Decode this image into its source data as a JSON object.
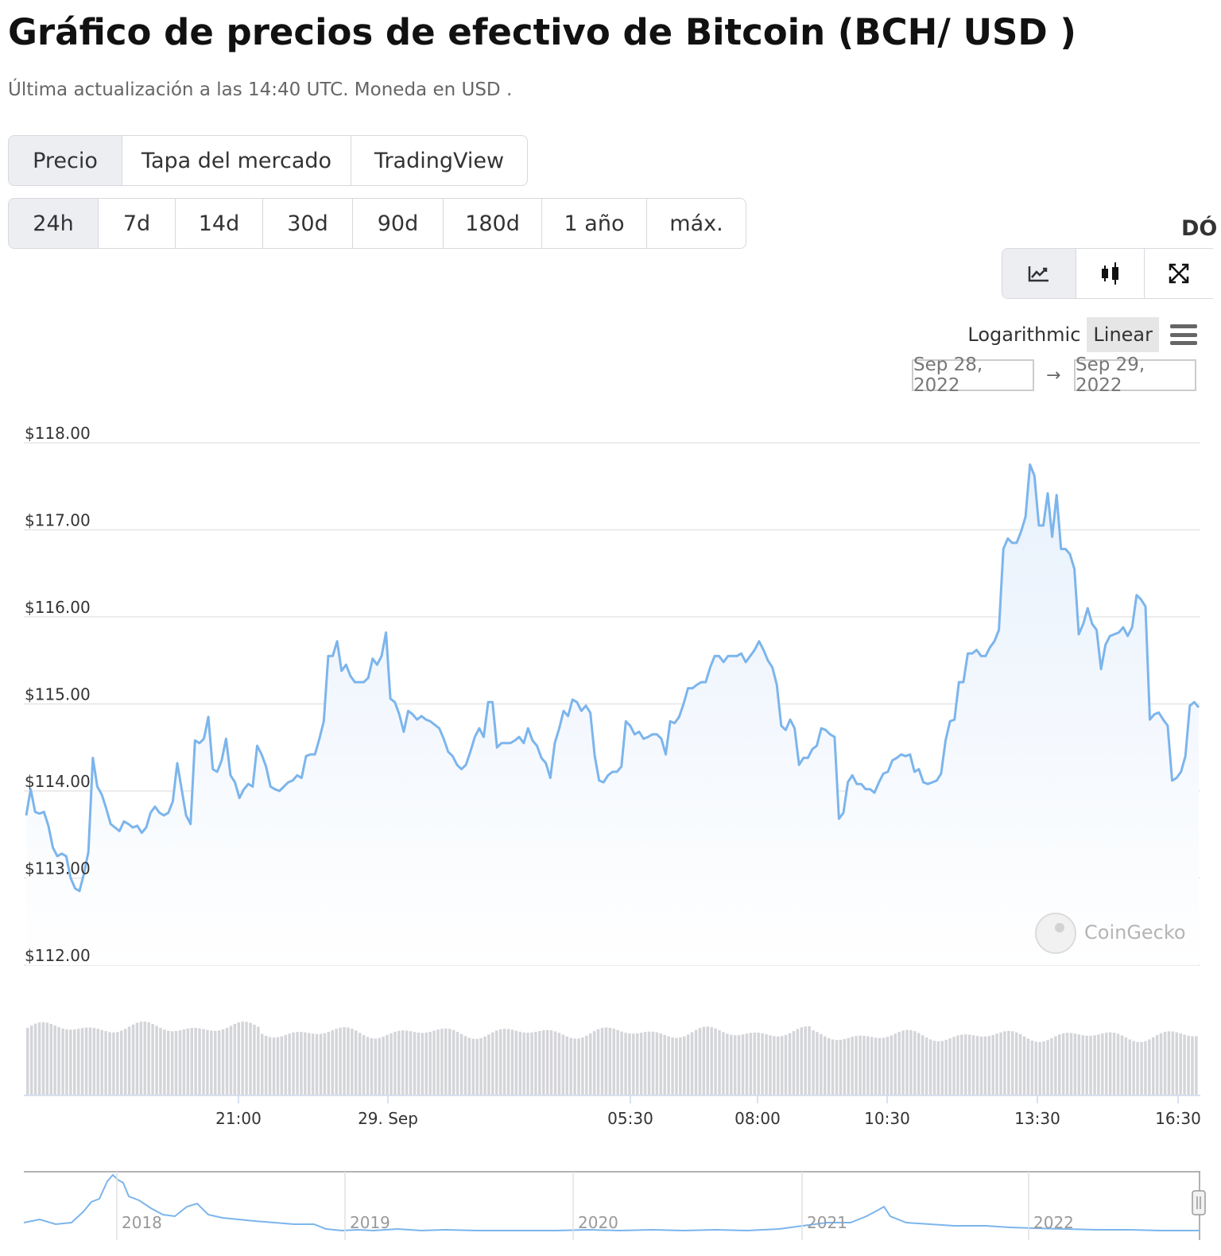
{
  "header": {
    "title": "Gráfico de precios de efectivo de Bitcoin (BCH/ USD )",
    "subtitle": "Última actualización a las 14:40 UTC. Moneda en USD ."
  },
  "tabs": [
    {
      "label": "Precio",
      "active": true
    },
    {
      "label": "Tapa del mercado",
      "active": false
    },
    {
      "label": "TradingView",
      "active": false
    }
  ],
  "ranges": [
    {
      "label": "24h",
      "active": true
    },
    {
      "label": "7d",
      "active": false
    },
    {
      "label": "14d",
      "active": false
    },
    {
      "label": "30d",
      "active": false
    },
    {
      "label": "90d",
      "active": false
    },
    {
      "label": "180d",
      "active": false
    },
    {
      "label": "1 año",
      "active": false
    },
    {
      "label": "máx.",
      "active": false
    }
  ],
  "currency_cut": "DÓ",
  "view_buttons": [
    {
      "icon": "line-chart-icon",
      "active": true
    },
    {
      "icon": "candlestick-icon",
      "active": false
    },
    {
      "icon": "fullscreen-icon",
      "active": false
    }
  ],
  "scale": {
    "options": [
      "Logarithmic",
      "Linear"
    ],
    "selected": "Linear"
  },
  "date_range": {
    "from": "Sep 28, 2022",
    "separator": "→",
    "to": "Sep 29, 2022"
  },
  "watermark": "CoinGecko",
  "colors": {
    "line": "#7cb5ec",
    "fill_top": "#e9f2fc",
    "volume": "#d4d5d9",
    "accent_bg": "#eceef2"
  },
  "chart_data": {
    "type": "area",
    "title": "",
    "xlabel": "",
    "ylabel": "",
    "ylim": [
      112,
      118
    ],
    "y_ticks": [
      "$112.00",
      "$113.00",
      "$114.00",
      "$115.00",
      "$116.00",
      "$117.00",
      "$118.00"
    ],
    "x_ticks": [
      "21:00",
      "29. Sep",
      "05:30",
      "08:00",
      "10:30",
      "13:30",
      "16:30"
    ],
    "grid": true,
    "legend": "none",
    "series": [
      {
        "values": [
          113.72,
          114.02,
          113.76,
          113.74,
          113.76,
          113.6,
          113.35,
          113.25,
          113.28,
          113.25,
          113.0,
          112.88,
          112.85,
          113.05,
          113.3,
          114.38,
          114.05,
          113.96,
          113.8,
          113.62,
          113.58,
          113.54,
          113.65,
          113.62,
          113.58,
          113.6,
          113.52,
          113.58,
          113.75,
          113.82,
          113.75,
          113.72,
          113.75,
          113.88,
          114.32,
          114.02,
          113.72,
          113.62,
          114.58,
          114.55,
          114.6,
          114.85,
          114.25,
          114.22,
          114.35,
          114.6,
          114.18,
          114.1,
          113.92,
          114.02,
          114.08,
          114.05,
          114.52,
          114.42,
          114.28,
          114.05,
          114.02,
          114.0,
          114.05,
          114.1,
          114.12,
          114.18,
          114.15,
          114.4,
          114.42,
          114.42,
          114.6,
          114.8,
          115.55,
          115.55,
          115.72,
          115.38,
          115.45,
          115.32,
          115.25,
          115.25,
          115.25,
          115.3,
          115.52,
          115.45,
          115.55,
          115.82,
          115.06,
          115.02,
          114.88,
          114.68,
          114.92,
          114.88,
          114.82,
          114.86,
          114.82,
          114.8,
          114.76,
          114.72,
          114.6,
          114.45,
          114.4,
          114.3,
          114.25,
          114.3,
          114.45,
          114.62,
          114.72,
          114.62,
          115.02,
          115.02,
          114.5,
          114.55,
          114.55,
          114.55,
          114.58,
          114.62,
          114.55,
          114.72,
          114.58,
          114.52,
          114.38,
          114.32,
          114.15,
          114.55,
          114.72,
          114.92,
          114.86,
          115.05,
          115.02,
          114.92,
          114.98,
          114.9,
          114.4,
          114.12,
          114.1,
          114.18,
          114.22,
          114.22,
          114.28,
          114.8,
          114.75,
          114.65,
          114.68,
          114.6,
          114.62,
          114.65,
          114.65,
          114.6,
          114.42,
          114.8,
          114.78,
          114.85,
          115.0,
          115.18,
          115.18,
          115.22,
          115.25,
          115.25,
          115.42,
          115.55,
          115.55,
          115.48,
          115.55,
          115.55,
          115.55,
          115.58,
          115.48,
          115.55,
          115.62,
          115.72,
          115.62,
          115.5,
          115.42,
          115.22,
          114.75,
          114.7,
          114.82,
          114.72,
          114.3,
          114.38,
          114.38,
          114.48,
          114.52,
          114.72,
          114.7,
          114.65,
          114.62,
          113.68,
          113.75,
          114.1,
          114.18,
          114.08,
          114.08,
          114.02,
          114.02,
          113.98,
          114.1,
          114.2,
          114.22,
          114.35,
          114.38,
          114.42,
          114.4,
          114.42,
          114.22,
          114.25,
          114.1,
          114.08,
          114.1,
          114.12,
          114.2,
          114.58,
          114.8,
          114.82,
          115.25,
          115.25,
          115.58,
          115.58,
          115.62,
          115.55,
          115.55,
          115.65,
          115.72,
          115.85,
          116.78,
          116.9,
          116.85,
          116.85,
          116.98,
          117.15,
          117.75,
          117.62,
          117.05,
          117.05,
          117.42,
          116.92,
          117.4,
          116.78,
          116.78,
          116.72,
          116.55,
          115.8,
          115.92,
          116.1,
          115.92,
          115.85,
          115.4,
          115.68,
          115.78,
          115.8,
          115.82,
          115.88,
          115.78,
          115.88,
          116.25,
          116.2,
          116.12,
          114.82,
          114.88,
          114.9,
          114.82,
          114.75,
          114.12,
          114.15,
          114.22,
          114.4,
          114.98,
          115.02,
          114.96
        ]
      }
    ],
    "navigator_labels": [
      "2018",
      "2019",
      "2020",
      "2021",
      "2022"
    ]
  }
}
